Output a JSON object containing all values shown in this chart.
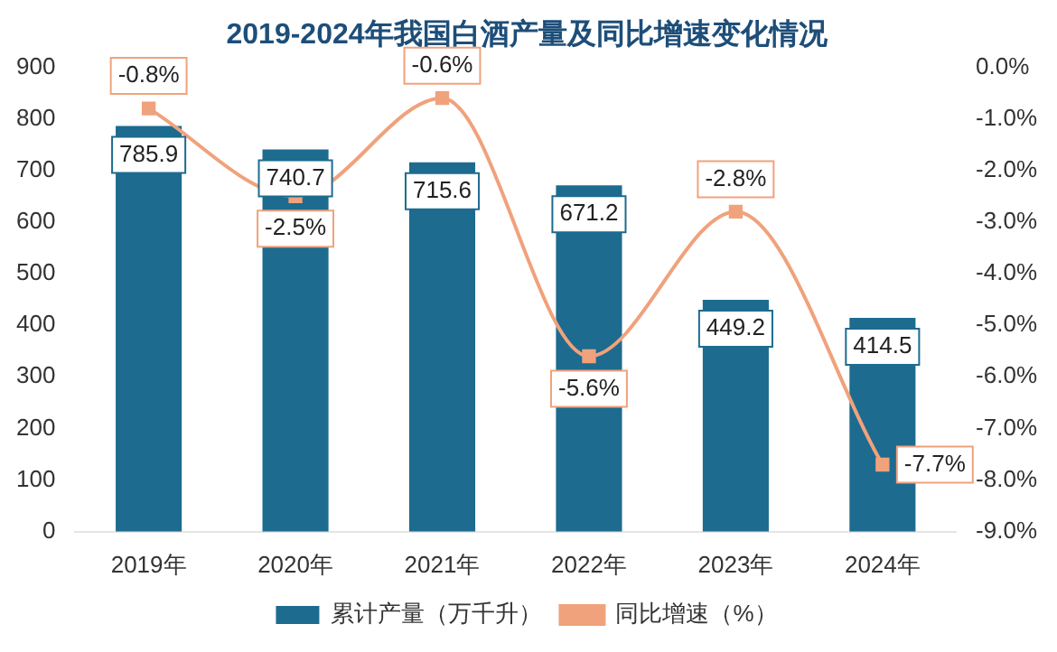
{
  "chart_data": {
    "type": "bar",
    "title": "2019-2024年我国白酒产量及同比增速变化情况",
    "categories": [
      "2019年",
      "2020年",
      "2021年",
      "2022年",
      "2023年",
      "2024年"
    ],
    "series": [
      {
        "name": "累计产量（万千升）",
        "color": "#1d6b8f",
        "values": [
          785.9,
          740.7,
          715.6,
          671.2,
          449.2,
          414.5
        ],
        "value_labels": [
          "785.9",
          "740.7",
          "715.6",
          "671.2",
          "449.2",
          "414.5"
        ]
      },
      {
        "name": "同比增速（%）",
        "type": "line",
        "axis": "y2",
        "color": "#f0a27c",
        "marker": "square",
        "values": [
          -0.8,
          -2.5,
          -0.6,
          -5.6,
          -2.8,
          -7.7
        ],
        "value_labels": [
          "-0.8%",
          "-2.5%",
          "-0.6%",
          "-5.6%",
          "-2.8%",
          "-7.7%"
        ]
      }
    ],
    "ylim": [
      0,
      900
    ],
    "yticks": [
      0,
      100,
      200,
      300,
      400,
      500,
      600,
      700,
      800,
      900
    ],
    "y2lim": [
      -9,
      0
    ],
    "y2ticks": [
      {
        "value": 0,
        "label": "0.0%"
      },
      {
        "value": -1,
        "label": "-1.0%"
      },
      {
        "value": -2,
        "label": "-2.0%"
      },
      {
        "value": -3,
        "label": "-3.0%"
      },
      {
        "value": -4,
        "label": "-4.0%"
      },
      {
        "value": -5,
        "label": "-5.0%"
      },
      {
        "value": -6,
        "label": "-6.0%"
      },
      {
        "value": -7,
        "label": "-7.0%"
      },
      {
        "value": -8,
        "label": "-8.0%"
      },
      {
        "value": -9,
        "label": "-9.0%"
      }
    ],
    "grid": false,
    "legend": "bottom"
  }
}
